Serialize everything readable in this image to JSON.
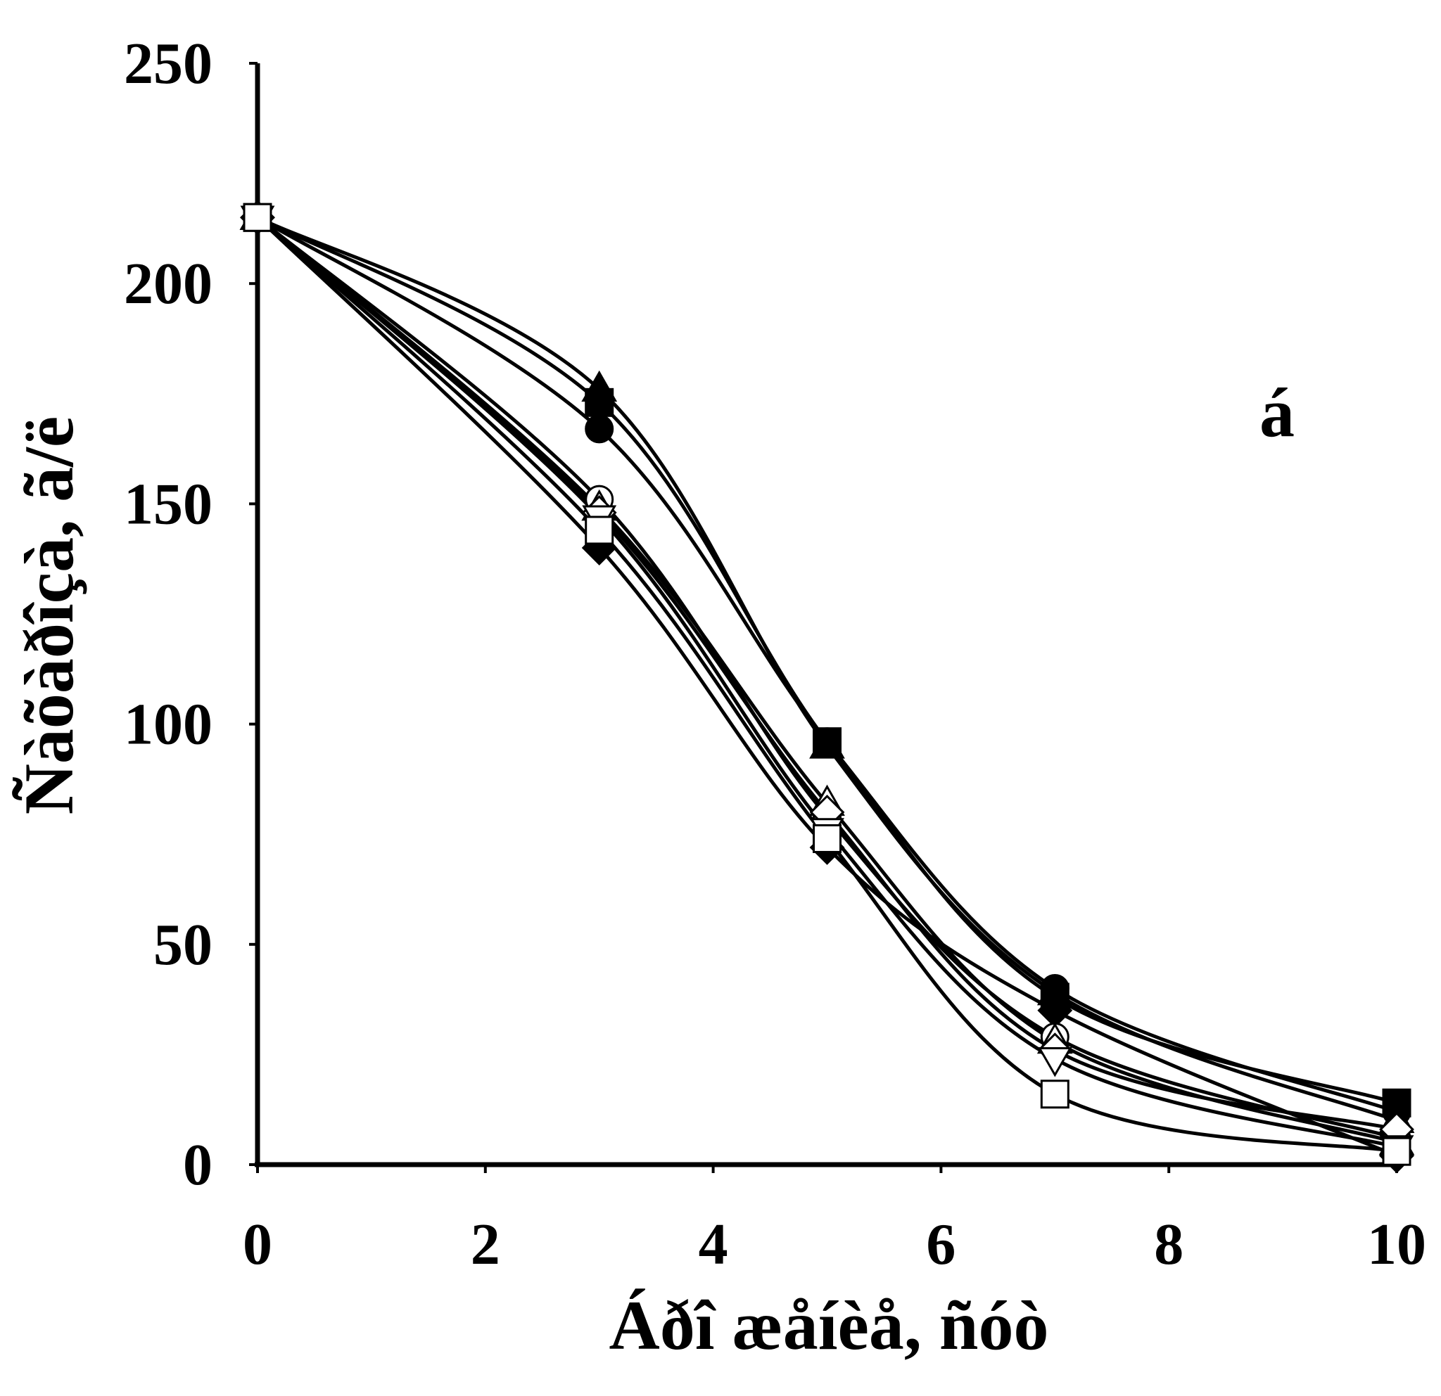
{
  "chart_data": {
    "type": "line",
    "panel_label": "á",
    "xlabel": "Áðî æåíèå, ñóò",
    "ylabel": "Ñàõàðîçà, ã/ë",
    "xlim": [
      0,
      10
    ],
    "ylim": [
      0,
      250
    ],
    "xticks": [
      0,
      2,
      4,
      6,
      8,
      10
    ],
    "yticks": [
      0,
      50,
      100,
      150,
      200,
      250
    ],
    "grid": false,
    "legend": "none",
    "x": [
      0,
      3,
      5,
      7,
      10
    ],
    "series": [
      {
        "marker": "triangle-filled",
        "values": [
          215,
          176,
          95,
          39,
          10
        ]
      },
      {
        "marker": "square-filled",
        "values": [
          215,
          173,
          96,
          38,
          14
        ]
      },
      {
        "marker": "circle-filled",
        "values": [
          215,
          167,
          96,
          40,
          12
        ]
      },
      {
        "marker": "diamond-filled",
        "values": [
          215,
          140,
          72,
          35,
          2
        ]
      },
      {
        "marker": "circle-open",
        "values": [
          215,
          151,
          79,
          29,
          6
        ]
      },
      {
        "marker": "triangle-open",
        "values": [
          215,
          149,
          82,
          28,
          5
        ]
      },
      {
        "marker": "diamond-open",
        "values": [
          215,
          148,
          80,
          26,
          8
        ]
      },
      {
        "marker": "triangle-down-open",
        "values": [
          215,
          147,
          76,
          24,
          4
        ]
      },
      {
        "marker": "square-open",
        "values": [
          215,
          144,
          74,
          16,
          3
        ]
      }
    ]
  }
}
